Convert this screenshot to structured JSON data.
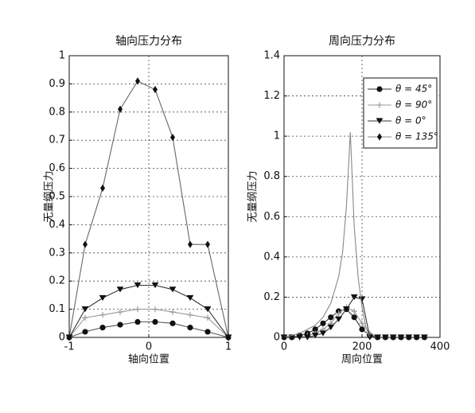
{
  "chart_data": [
    {
      "type": "line",
      "title": "轴向压力分布",
      "xlabel": "轴向位置",
      "ylabel": "无量纲压力",
      "x": [
        -1,
        -0.8,
        -0.58,
        -0.36,
        -0.14,
        0.08,
        0.3,
        0.52,
        0.74,
        1
      ],
      "xlim": [
        -1,
        1
      ],
      "xticks": [
        -1,
        0,
        1
      ],
      "ylim": [
        0,
        1
      ],
      "yticks": [
        0,
        0.1,
        0.2,
        0.3,
        0.4,
        0.5,
        0.6,
        0.7,
        0.8,
        0.9,
        1
      ],
      "grid": true,
      "series": [
        {
          "color": "#111111",
          "line_color": "#555555",
          "marker": "circle",
          "values": [
            0,
            0.02,
            0.035,
            0.045,
            0.055,
            0.055,
            0.05,
            0.035,
            0.02,
            0
          ]
        },
        {
          "color": "#999999",
          "line_color": "#999999",
          "marker": "plus",
          "values": [
            0,
            0.07,
            0.08,
            0.09,
            0.1,
            0.1,
            0.09,
            0.08,
            0.07,
            0
          ]
        },
        {
          "color": "#111111",
          "line_color": "#333333",
          "marker": "triangle",
          "values": [
            0,
            0.1,
            0.14,
            0.17,
            0.185,
            0.185,
            0.17,
            0.14,
            0.1,
            0
          ]
        },
        {
          "color": "#111111",
          "line_color": "#666666",
          "marker": "diamond",
          "values": [
            0,
            0.33,
            0.53,
            0.81,
            0.91,
            0.88,
            0.71,
            0.33,
            0.33,
            0
          ]
        }
      ]
    },
    {
      "type": "line",
      "title": "周向压力分布",
      "xlabel": "周向位置",
      "ylabel": "无量纲压力",
      "xlim": [
        0,
        400
      ],
      "xticks": [
        0,
        200,
        400
      ],
      "ylim": [
        0,
        1.4
      ],
      "yticks": [
        0,
        0.2,
        0.4,
        0.6,
        0.8,
        1,
        1.2,
        1.4
      ],
      "grid": true,
      "legend": "upper right",
      "series": [
        {
          "name": "θ = 45°",
          "color": "#111111",
          "line_color": "#333333",
          "marker": "circle",
          "x": [
            0,
            20,
            40,
            60,
            80,
            100,
            120,
            140,
            160,
            180,
            200,
            220,
            240,
            260,
            280,
            300,
            320,
            340,
            360
          ],
          "values": [
            0,
            0,
            0.01,
            0.02,
            0.04,
            0.07,
            0.1,
            0.13,
            0.14,
            0.1,
            0.04,
            0.01,
            0,
            0,
            0,
            0,
            0,
            0,
            0
          ]
        },
        {
          "name": "θ = 90°",
          "color": "#999999",
          "line_color": "#999999",
          "marker": "plus",
          "x": [
            0,
            20,
            40,
            60,
            80,
            100,
            120,
            140,
            160,
            180,
            200,
            220,
            240,
            260,
            280,
            300,
            320,
            340,
            360
          ],
          "values": [
            0,
            0,
            0,
            0.01,
            0.02,
            0.04,
            0.07,
            0.12,
            0.15,
            0.13,
            0.07,
            0.02,
            0,
            0,
            0,
            0,
            0,
            0,
            0
          ]
        },
        {
          "name": "θ = 0°",
          "color": "#111111",
          "line_color": "#333333",
          "marker": "triangle",
          "x": [
            0,
            20,
            40,
            60,
            80,
            100,
            120,
            140,
            160,
            180,
            200,
            220,
            240,
            260,
            280,
            300,
            320,
            340,
            360
          ],
          "values": [
            0,
            0,
            0,
            0,
            0.01,
            0.02,
            0.05,
            0.09,
            0.14,
            0.2,
            0.19,
            0,
            0,
            0,
            0,
            0,
            0,
            0,
            0
          ]
        },
        {
          "name": "θ = 135°",
          "color": "#111111",
          "line_color": "#888888",
          "marker": "diamond",
          "show_markers": false,
          "x": [
            0,
            20,
            40,
            60,
            80,
            100,
            120,
            140,
            150,
            160,
            170,
            180,
            190,
            200,
            210,
            220,
            240,
            280,
            320,
            360
          ],
          "values": [
            0,
            0.01,
            0.02,
            0.04,
            0.06,
            0.1,
            0.17,
            0.3,
            0.42,
            0.65,
            1.02,
            0.55,
            0.3,
            0.15,
            0.05,
            0,
            0,
            0,
            0,
            0
          ]
        }
      ]
    }
  ]
}
